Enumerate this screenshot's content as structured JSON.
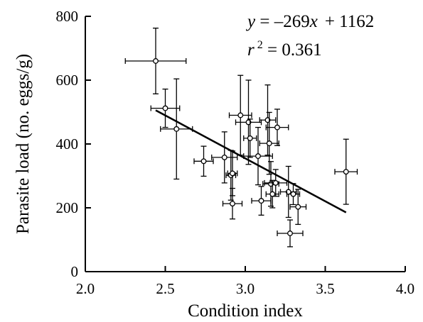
{
  "chart_data": {
    "type": "scatter",
    "title": "",
    "xlabel": "Condition index",
    "ylabel": "Parasite load (no. eggs/g)",
    "xlim": [
      2.0,
      4.0
    ],
    "ylim": [
      0,
      800
    ],
    "xticks": [
      "2.0",
      "2.5",
      "3.0",
      "3.5",
      "4.0"
    ],
    "yticks": [
      "0",
      "200",
      "400",
      "600",
      "800"
    ],
    "grid": false,
    "legend": "none",
    "annotation": {
      "y_eq": "y",
      "equals": " = ",
      "slope": "–269",
      "x_var": "x",
      "intercept": "+ 1162",
      "r_var": "r",
      "r_exp": "2",
      "r_value": " = 0.361"
    },
    "regression": {
      "slope": -269,
      "intercept": 1162,
      "x_start": 2.44,
      "x_end": 3.63
    },
    "points": [
      {
        "x": 2.44,
        "y": 660,
        "xerr": 0.19,
        "yerr": 103
      },
      {
        "x": 2.5,
        "y": 512,
        "xerr": 0.09,
        "yerr": 60
      },
      {
        "x": 2.57,
        "y": 447,
        "xerr": 0.1,
        "yerr": 157
      },
      {
        "x": 2.74,
        "y": 346,
        "xerr": 0.06,
        "yerr": 47
      },
      {
        "x": 2.87,
        "y": 358,
        "xerr": 0.08,
        "yerr": 80
      },
      {
        "x": 2.91,
        "y": 302,
        "xerr": 0.03,
        "yerr": 78
      },
      {
        "x": 2.92,
        "y": 308,
        "xerr": 0.03,
        "yerr": 70
      },
      {
        "x": 2.92,
        "y": 213,
        "xerr": 0.06,
        "yerr": 48
      },
      {
        "x": 2.97,
        "y": 490,
        "xerr": 0.07,
        "yerr": 125
      },
      {
        "x": 3.02,
        "y": 468,
        "xerr": 0.08,
        "yerr": 132
      },
      {
        "x": 3.03,
        "y": 418,
        "xerr": 0.04,
        "yerr": 60
      },
      {
        "x": 3.08,
        "y": 362,
        "xerr": 0.09,
        "yerr": 90
      },
      {
        "x": 3.1,
        "y": 222,
        "xerr": 0.06,
        "yerr": 45
      },
      {
        "x": 3.14,
        "y": 475,
        "xerr": 0.05,
        "yerr": 110
      },
      {
        "x": 3.15,
        "y": 402,
        "xerr": 0.06,
        "yerr": 97
      },
      {
        "x": 3.16,
        "y": 275,
        "xerr": 0.05,
        "yerr": 70
      },
      {
        "x": 3.17,
        "y": 243,
        "xerr": 0.04,
        "yerr": 43
      },
      {
        "x": 3.19,
        "y": 278,
        "xerr": 0.07,
        "yerr": 42
      },
      {
        "x": 3.2,
        "y": 452,
        "xerr": 0.07,
        "yerr": 57
      },
      {
        "x": 3.27,
        "y": 250,
        "xerr": 0.05,
        "yerr": 80
      },
      {
        "x": 3.28,
        "y": 120,
        "xerr": 0.08,
        "yerr": 42
      },
      {
        "x": 3.3,
        "y": 243,
        "xerr": 0.04,
        "yerr": 33
      },
      {
        "x": 3.33,
        "y": 203,
        "xerr": 0.05,
        "yerr": 55
      },
      {
        "x": 3.63,
        "y": 313,
        "xerr": 0.07,
        "yerr": 102
      }
    ]
  }
}
